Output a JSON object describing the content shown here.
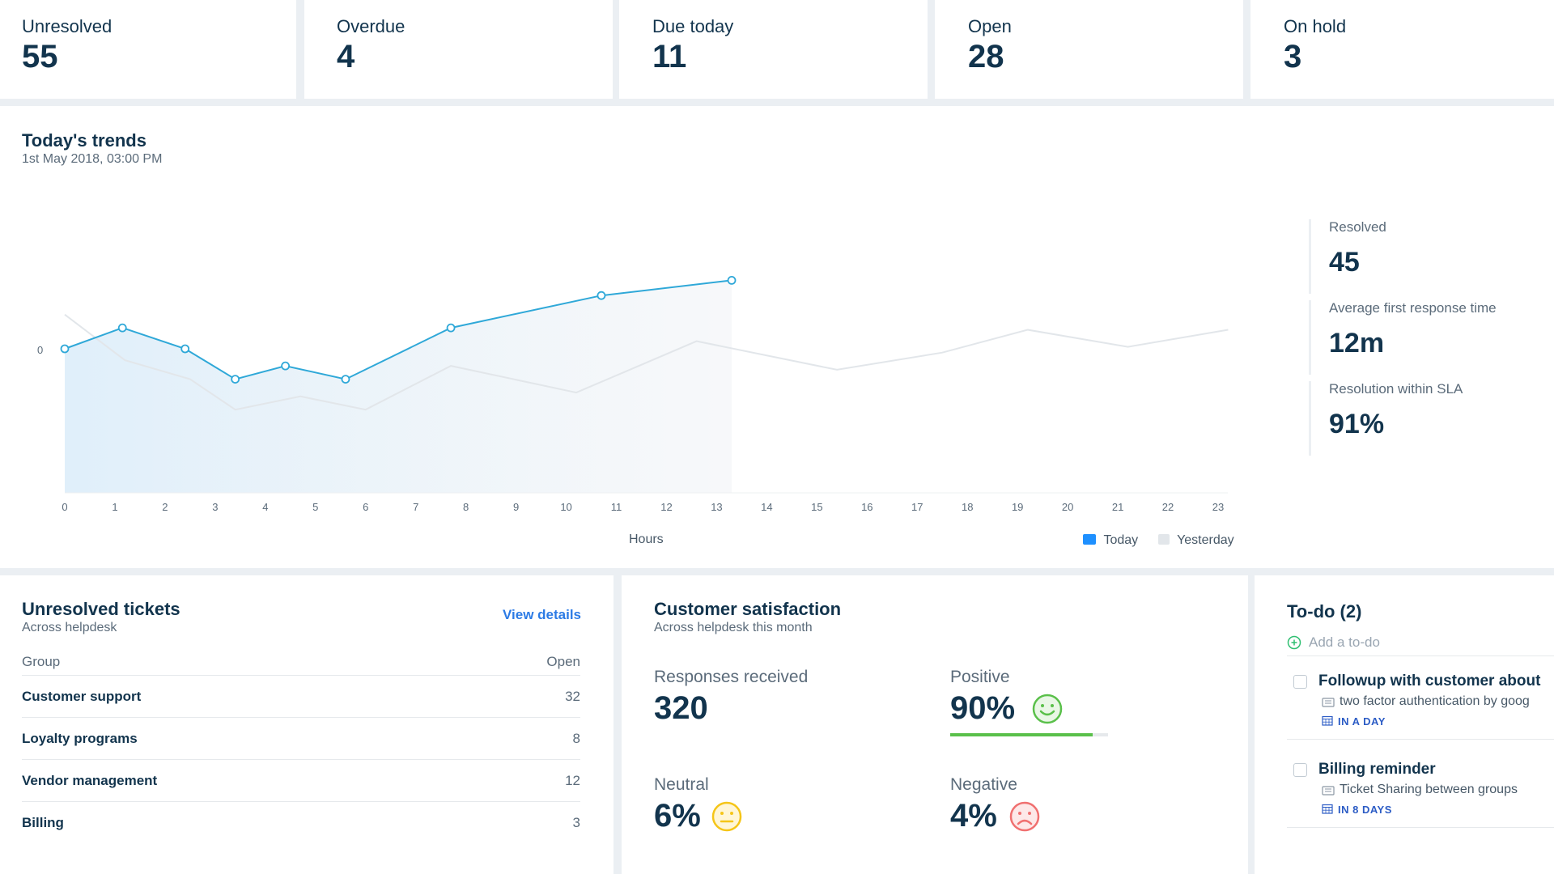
{
  "stats": [
    {
      "label": "Unresolved",
      "value": "55"
    },
    {
      "label": "Overdue",
      "value": "4"
    },
    {
      "label": "Due today",
      "value": "11"
    },
    {
      "label": "Open",
      "value": "28"
    },
    {
      "label": "On hold",
      "value": "3"
    }
  ],
  "trends": {
    "title": "Today's trends",
    "subtitle": "1st May 2018, 03:00 PM",
    "y_tick": "0",
    "xlabel": "Hours",
    "legend_today": "Today",
    "legend_yesterday": "Yesterday",
    "metrics": [
      {
        "label": "Resolved",
        "value": "45"
      },
      {
        "label": "Average first response time",
        "value": "12m"
      },
      {
        "label": "Resolution within SLA",
        "value": "91%"
      }
    ]
  },
  "chart_data": {
    "type": "line",
    "xlabel": "Hours",
    "ylabel": "",
    "x": [
      0,
      1,
      2,
      3,
      4,
      5,
      6,
      7,
      8,
      9,
      10,
      11,
      12,
      13,
      14,
      15,
      16,
      17,
      18,
      19,
      20,
      21,
      22,
      23
    ],
    "series": [
      {
        "name": "Today",
        "color": "#2fa8d8",
        "x": [
          0,
          1.15,
          2.4,
          3.4,
          4.4,
          5.6,
          7.7,
          10.7,
          13.3
        ],
        "values": [
          0,
          0.55,
          0,
          -0.8,
          -0.45,
          -0.8,
          0.55,
          1.4,
          1.8
        ]
      },
      {
        "name": "Yesterday",
        "color": "#e2e6ea",
        "x": [
          0,
          1.2,
          2.5,
          3.4,
          4.7,
          6,
          7.7,
          10.2,
          12.6,
          15.4,
          17.5,
          19.2,
          21.2,
          23.2
        ],
        "values": [
          0.9,
          -0.3,
          -0.8,
          -1.6,
          -1.25,
          -1.6,
          -0.45,
          -1.15,
          0.2,
          -0.55,
          -0.1,
          0.5,
          0.05,
          0.5
        ]
      }
    ],
    "ylim": [
      -3,
      2.5
    ],
    "xlim": [
      0,
      23
    ],
    "grid": false,
    "legend": "bottom-right"
  },
  "unresolved": {
    "title": "Unresolved tickets",
    "subtitle": "Across helpdesk",
    "link": "View details",
    "col_group": "Group",
    "col_open": "Open",
    "rows": [
      {
        "group": "Customer support",
        "open": "32"
      },
      {
        "group": "Loyalty programs",
        "open": "8"
      },
      {
        "group": "Vendor management",
        "open": "12"
      },
      {
        "group": "Billing",
        "open": "3"
      }
    ]
  },
  "csat": {
    "title": "Customer satisfaction",
    "subtitle": "Across helpdesk this month",
    "responses_label": "Responses received",
    "responses_value": "320",
    "positive_label": "Positive",
    "positive_value": "90%",
    "positive_fraction": 0.9,
    "neutral_label": "Neutral",
    "neutral_value": "6%",
    "negative_label": "Negative",
    "negative_value": "4%",
    "colors": {
      "positive": "#5ac04a",
      "neutral": "#f5c518",
      "negative": "#f07070"
    }
  },
  "todo": {
    "title": "To-do (2)",
    "add_placeholder": "Add a to-do",
    "items": [
      {
        "title": "Followup with customer about",
        "ticket": "two factor authentication by goog",
        "due": "IN A DAY"
      },
      {
        "title": "Billing reminder",
        "ticket": "Ticket Sharing between groups",
        "due": "IN 8 DAYS"
      }
    ]
  }
}
